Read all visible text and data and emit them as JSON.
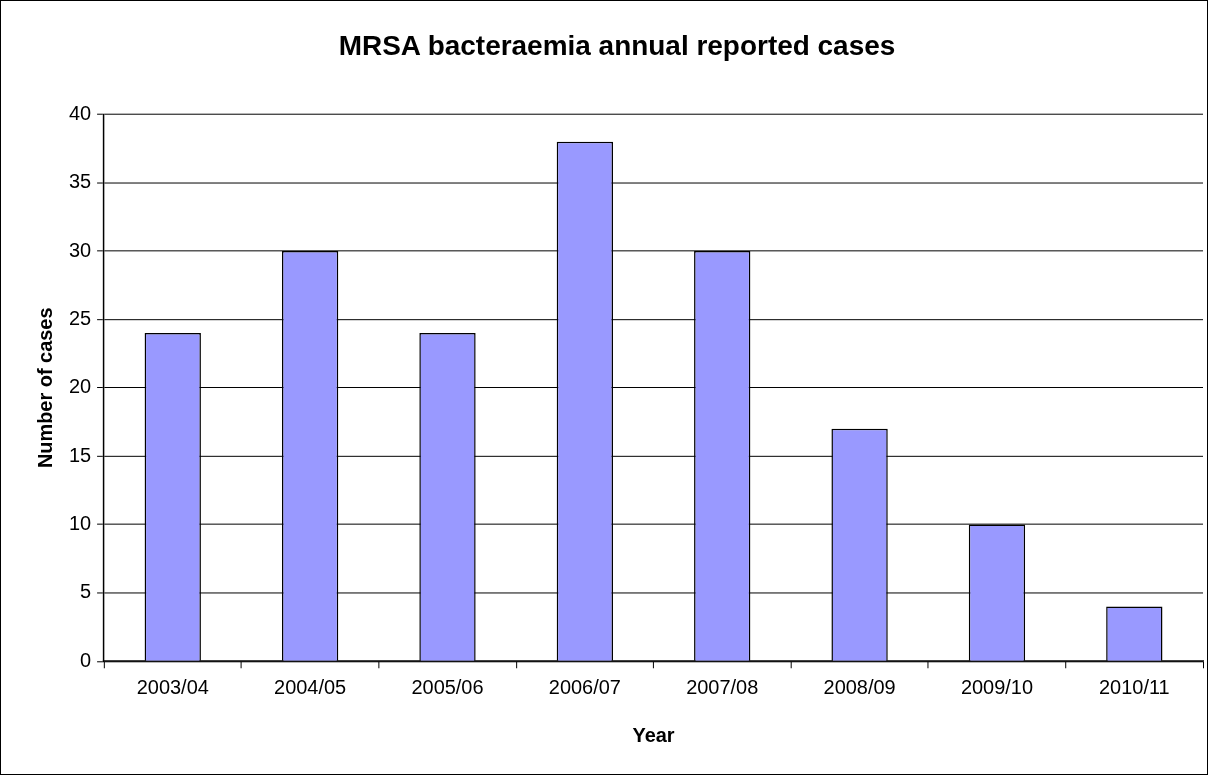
{
  "chart_data": {
    "type": "bar",
    "title": "MRSA bacteraemia annual reported cases",
    "xlabel": "Year",
    "ylabel": "Number of cases",
    "categories": [
      "2003/04",
      "2004/05",
      "2005/06",
      "2006/07",
      "2007/08",
      "2008/09",
      "2009/10",
      "2010/11"
    ],
    "values": [
      24,
      30,
      24,
      38,
      30,
      17,
      10,
      4
    ],
    "color": "#9999ff",
    "ylim": [
      0,
      40
    ],
    "yticks": [
      0,
      5,
      10,
      15,
      20,
      25,
      30,
      35,
      40
    ],
    "grid": "y",
    "legend": false
  }
}
